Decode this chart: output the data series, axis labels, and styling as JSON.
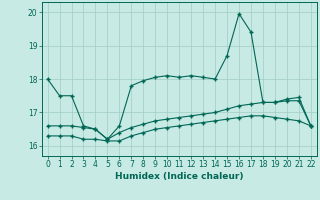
{
  "xlabel": "Humidex (Indice chaleur)",
  "xlim": [
    -0.5,
    22.5
  ],
  "ylim": [
    15.7,
    20.3
  ],
  "yticks": [
    16,
    17,
    18,
    19,
    20
  ],
  "xticks": [
    0,
    1,
    2,
    3,
    4,
    5,
    6,
    7,
    8,
    9,
    10,
    11,
    12,
    13,
    14,
    15,
    16,
    17,
    18,
    19,
    20,
    21,
    22
  ],
  "bg_color": "#c8eae4",
  "grid_color": "#a0ccc4",
  "line_color": "#006655",
  "line1_x": [
    0,
    1,
    2,
    3,
    4,
    5,
    6,
    7,
    8,
    9,
    10,
    11,
    12,
    13,
    14,
    15,
    16,
    17,
    18,
    19,
    20,
    21,
    22
  ],
  "line1_y": [
    18.0,
    17.5,
    17.5,
    16.6,
    16.5,
    16.2,
    16.6,
    17.8,
    17.95,
    18.05,
    18.1,
    18.05,
    18.1,
    18.05,
    18.0,
    18.7,
    19.95,
    19.4,
    17.3,
    17.3,
    17.4,
    17.45,
    16.6
  ],
  "line2_x": [
    0,
    1,
    2,
    3,
    4,
    5,
    6,
    7,
    8,
    9,
    10,
    11,
    12,
    13,
    14,
    15,
    16,
    17,
    18,
    19,
    20,
    21,
    22
  ],
  "line2_y": [
    16.6,
    16.6,
    16.6,
    16.55,
    16.5,
    16.2,
    16.4,
    16.55,
    16.65,
    16.75,
    16.8,
    16.85,
    16.9,
    16.95,
    17.0,
    17.1,
    17.2,
    17.25,
    17.3,
    17.3,
    17.35,
    17.35,
    16.6
  ],
  "line3_x": [
    0,
    1,
    2,
    3,
    4,
    5,
    6,
    7,
    8,
    9,
    10,
    11,
    12,
    13,
    14,
    15,
    16,
    17,
    18,
    19,
    20,
    21,
    22
  ],
  "line3_y": [
    16.3,
    16.3,
    16.3,
    16.2,
    16.2,
    16.15,
    16.15,
    16.3,
    16.4,
    16.5,
    16.55,
    16.6,
    16.65,
    16.7,
    16.75,
    16.8,
    16.85,
    16.9,
    16.9,
    16.85,
    16.8,
    16.75,
    16.6
  ]
}
